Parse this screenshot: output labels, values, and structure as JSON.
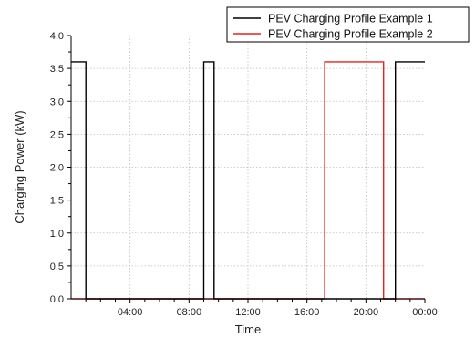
{
  "chart_data": {
    "type": "line",
    "title": "",
    "xlabel": "Time",
    "ylabel": "Charging Power (kW)",
    "x_unit": "hours",
    "xlim": [
      0,
      24
    ],
    "ylim": [
      0,
      4.0
    ],
    "x_ticks": [
      4,
      8,
      12,
      16,
      20,
      24
    ],
    "x_tick_labels": [
      "04:00",
      "08:00",
      "12:00",
      "16:00",
      "20:00",
      "00:00"
    ],
    "y_ticks": [
      0,
      0.5,
      1.0,
      1.5,
      2.0,
      2.5,
      3.0,
      3.5,
      4.0
    ],
    "y_tick_labels": [
      "0.0",
      "0.5",
      "1.0",
      "1.5",
      "2.0",
      "2.5",
      "3.0",
      "3.5",
      "4.0"
    ],
    "grid": true,
    "legend_position": "top-right",
    "series": [
      {
        "name": "PEV Charging Profile Example 1",
        "color": "#000000",
        "x": [
          0,
          1.0,
          1.0,
          9.0,
          9.0,
          9.7,
          9.7,
          22.0,
          22.0,
          24
        ],
        "y": [
          3.6,
          3.6,
          0,
          0,
          3.6,
          3.6,
          0,
          0,
          3.6,
          3.6
        ]
      },
      {
        "name": "PEV Charging Profile Example 2",
        "color": "#e8211d",
        "x": [
          0,
          17.2,
          17.2,
          21.2,
          21.2,
          24
        ],
        "y": [
          0,
          0,
          3.6,
          3.6,
          0,
          0
        ]
      }
    ]
  }
}
